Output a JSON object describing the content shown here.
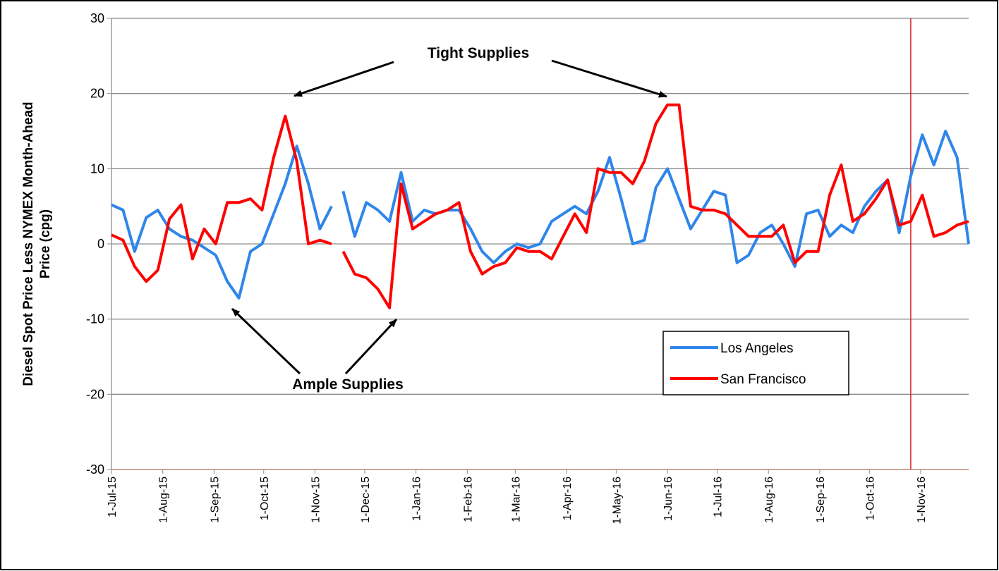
{
  "chart_data": {
    "type": "line",
    "ylabel_lines": [
      "Diesel Spot Price Less NYMEX Month-Ahead",
      "Price (cpg)"
    ],
    "x": [
      "2015-07-01",
      "2015-07-08",
      "2015-07-15",
      "2015-07-22",
      "2015-07-29",
      "2015-08-05",
      "2015-08-12",
      "2015-08-19",
      "2015-08-26",
      "2015-09-02",
      "2015-09-09",
      "2015-09-16",
      "2015-09-23",
      "2015-09-30",
      "2015-10-07",
      "2015-10-14",
      "2015-10-21",
      "2015-10-28",
      "2015-11-04",
      "2015-11-11",
      "2015-11-14",
      "2015-11-18",
      "2015-11-25",
      "2015-12-02",
      "2015-12-09",
      "2015-12-16",
      "2015-12-23",
      "2015-12-30",
      "2016-01-06",
      "2016-01-13",
      "2016-01-20",
      "2016-01-27",
      "2016-02-03",
      "2016-02-10",
      "2016-02-17",
      "2016-02-24",
      "2016-03-02",
      "2016-03-09",
      "2016-03-16",
      "2016-03-23",
      "2016-03-30",
      "2016-04-06",
      "2016-04-13",
      "2016-04-20",
      "2016-04-27",
      "2016-05-04",
      "2016-05-11",
      "2016-05-18",
      "2016-05-25",
      "2016-06-01",
      "2016-06-08",
      "2016-06-15",
      "2016-06-22",
      "2016-06-29",
      "2016-07-06",
      "2016-07-13",
      "2016-07-20",
      "2016-07-27",
      "2016-08-03",
      "2016-08-10",
      "2016-08-17",
      "2016-08-24",
      "2016-08-31",
      "2016-09-07",
      "2016-09-14",
      "2016-09-21",
      "2016-09-28",
      "2016-10-05",
      "2016-10-12",
      "2016-10-19",
      "2016-10-26",
      "2016-11-02",
      "2016-11-09",
      "2016-11-16",
      "2016-11-23",
      "2016-11-30"
    ],
    "series": [
      {
        "name": "Los Angeles",
        "color": "#2f86ea",
        "values": [
          5.2,
          4.5,
          -1,
          3.5,
          4.5,
          2,
          1,
          0.5,
          -0.5,
          -1.5,
          -5,
          -7.2,
          -1,
          0,
          4,
          8,
          13,
          8,
          2,
          5,
          null,
          7,
          1,
          5.5,
          4.5,
          3,
          9.5,
          3,
          4.5,
          4,
          4.5,
          4.5,
          2,
          -1,
          -2.5,
          -1,
          0,
          -0.5,
          0,
          3,
          4,
          5,
          4,
          7,
          11.5,
          6,
          0,
          0.5,
          7.5,
          10,
          6,
          2,
          4.5,
          7,
          6.5,
          -2.5,
          -1.5,
          1.5,
          2.5,
          0,
          -3,
          4,
          4.5,
          1,
          2.5,
          1.5,
          5,
          7,
          8.5,
          1.5,
          9,
          14.5,
          10.5,
          15,
          11.5,
          0
        ]
      },
      {
        "name": "San Francisco",
        "color": "#ff0000",
        "values": [
          1.2,
          0.5,
          -3,
          -5,
          -3.5,
          3.3,
          5.2,
          -2,
          2,
          0,
          5.5,
          5.5,
          6,
          4.5,
          11.5,
          17,
          11,
          0,
          0.5,
          0,
          null,
          -1,
          -4,
          -4.5,
          -6,
          -8.5,
          8,
          2,
          3,
          4,
          4.5,
          5.5,
          -1,
          -4,
          -3,
          -2.5,
          -0.5,
          -1,
          -1,
          -2,
          1,
          4,
          1.5,
          10,
          9.5,
          9.5,
          8,
          11,
          16,
          18.5,
          18.5,
          5,
          4.5,
          4.5,
          4,
          2.5,
          1,
          1,
          1,
          2.5,
          -2.5,
          -1,
          -1,
          6.5,
          10.5,
          3,
          4,
          6,
          8.5,
          2.5,
          3,
          6.5,
          1,
          1.5,
          2.5,
          3
        ]
      }
    ],
    "xlim": [
      "2015-07-01",
      "2016-11-30"
    ],
    "xticks": [
      {
        "value": "2015-07-01",
        "label": "1-Jul-15"
      },
      {
        "value": "2015-08-01",
        "label": "1-Aug-15"
      },
      {
        "value": "2015-09-01",
        "label": "1-Sep-15"
      },
      {
        "value": "2015-10-01",
        "label": "1-Oct-15"
      },
      {
        "value": "2015-11-01",
        "label": "1-Nov-15"
      },
      {
        "value": "2015-12-01",
        "label": "1-Dec-15"
      },
      {
        "value": "2016-01-01",
        "label": "1-Jan-16"
      },
      {
        "value": "2016-02-01",
        "label": "1-Feb-16"
      },
      {
        "value": "2016-03-01",
        "label": "1-Mar-16"
      },
      {
        "value": "2016-04-01",
        "label": "1-Apr-16"
      },
      {
        "value": "2016-05-01",
        "label": "1-May-16"
      },
      {
        "value": "2016-06-01",
        "label": "1-Jun-16"
      },
      {
        "value": "2016-07-01",
        "label": "1-Jul-16"
      },
      {
        "value": "2016-08-01",
        "label": "1-Aug-16"
      },
      {
        "value": "2016-09-01",
        "label": "1-Sep-16"
      },
      {
        "value": "2016-10-01",
        "label": "1-Oct-16"
      },
      {
        "value": "2016-11-01",
        "label": "1-Nov-16"
      }
    ],
    "ylim": [
      -30,
      30
    ],
    "yticks": [
      -30,
      -20,
      -10,
      0,
      10,
      20,
      30
    ],
    "grid": true,
    "vline": {
      "x": "2016-10-26",
      "color": "#e02020"
    },
    "annotations": [
      {
        "text": "Tight Supplies"
      },
      {
        "text": "Ample Supplies"
      }
    ]
  }
}
